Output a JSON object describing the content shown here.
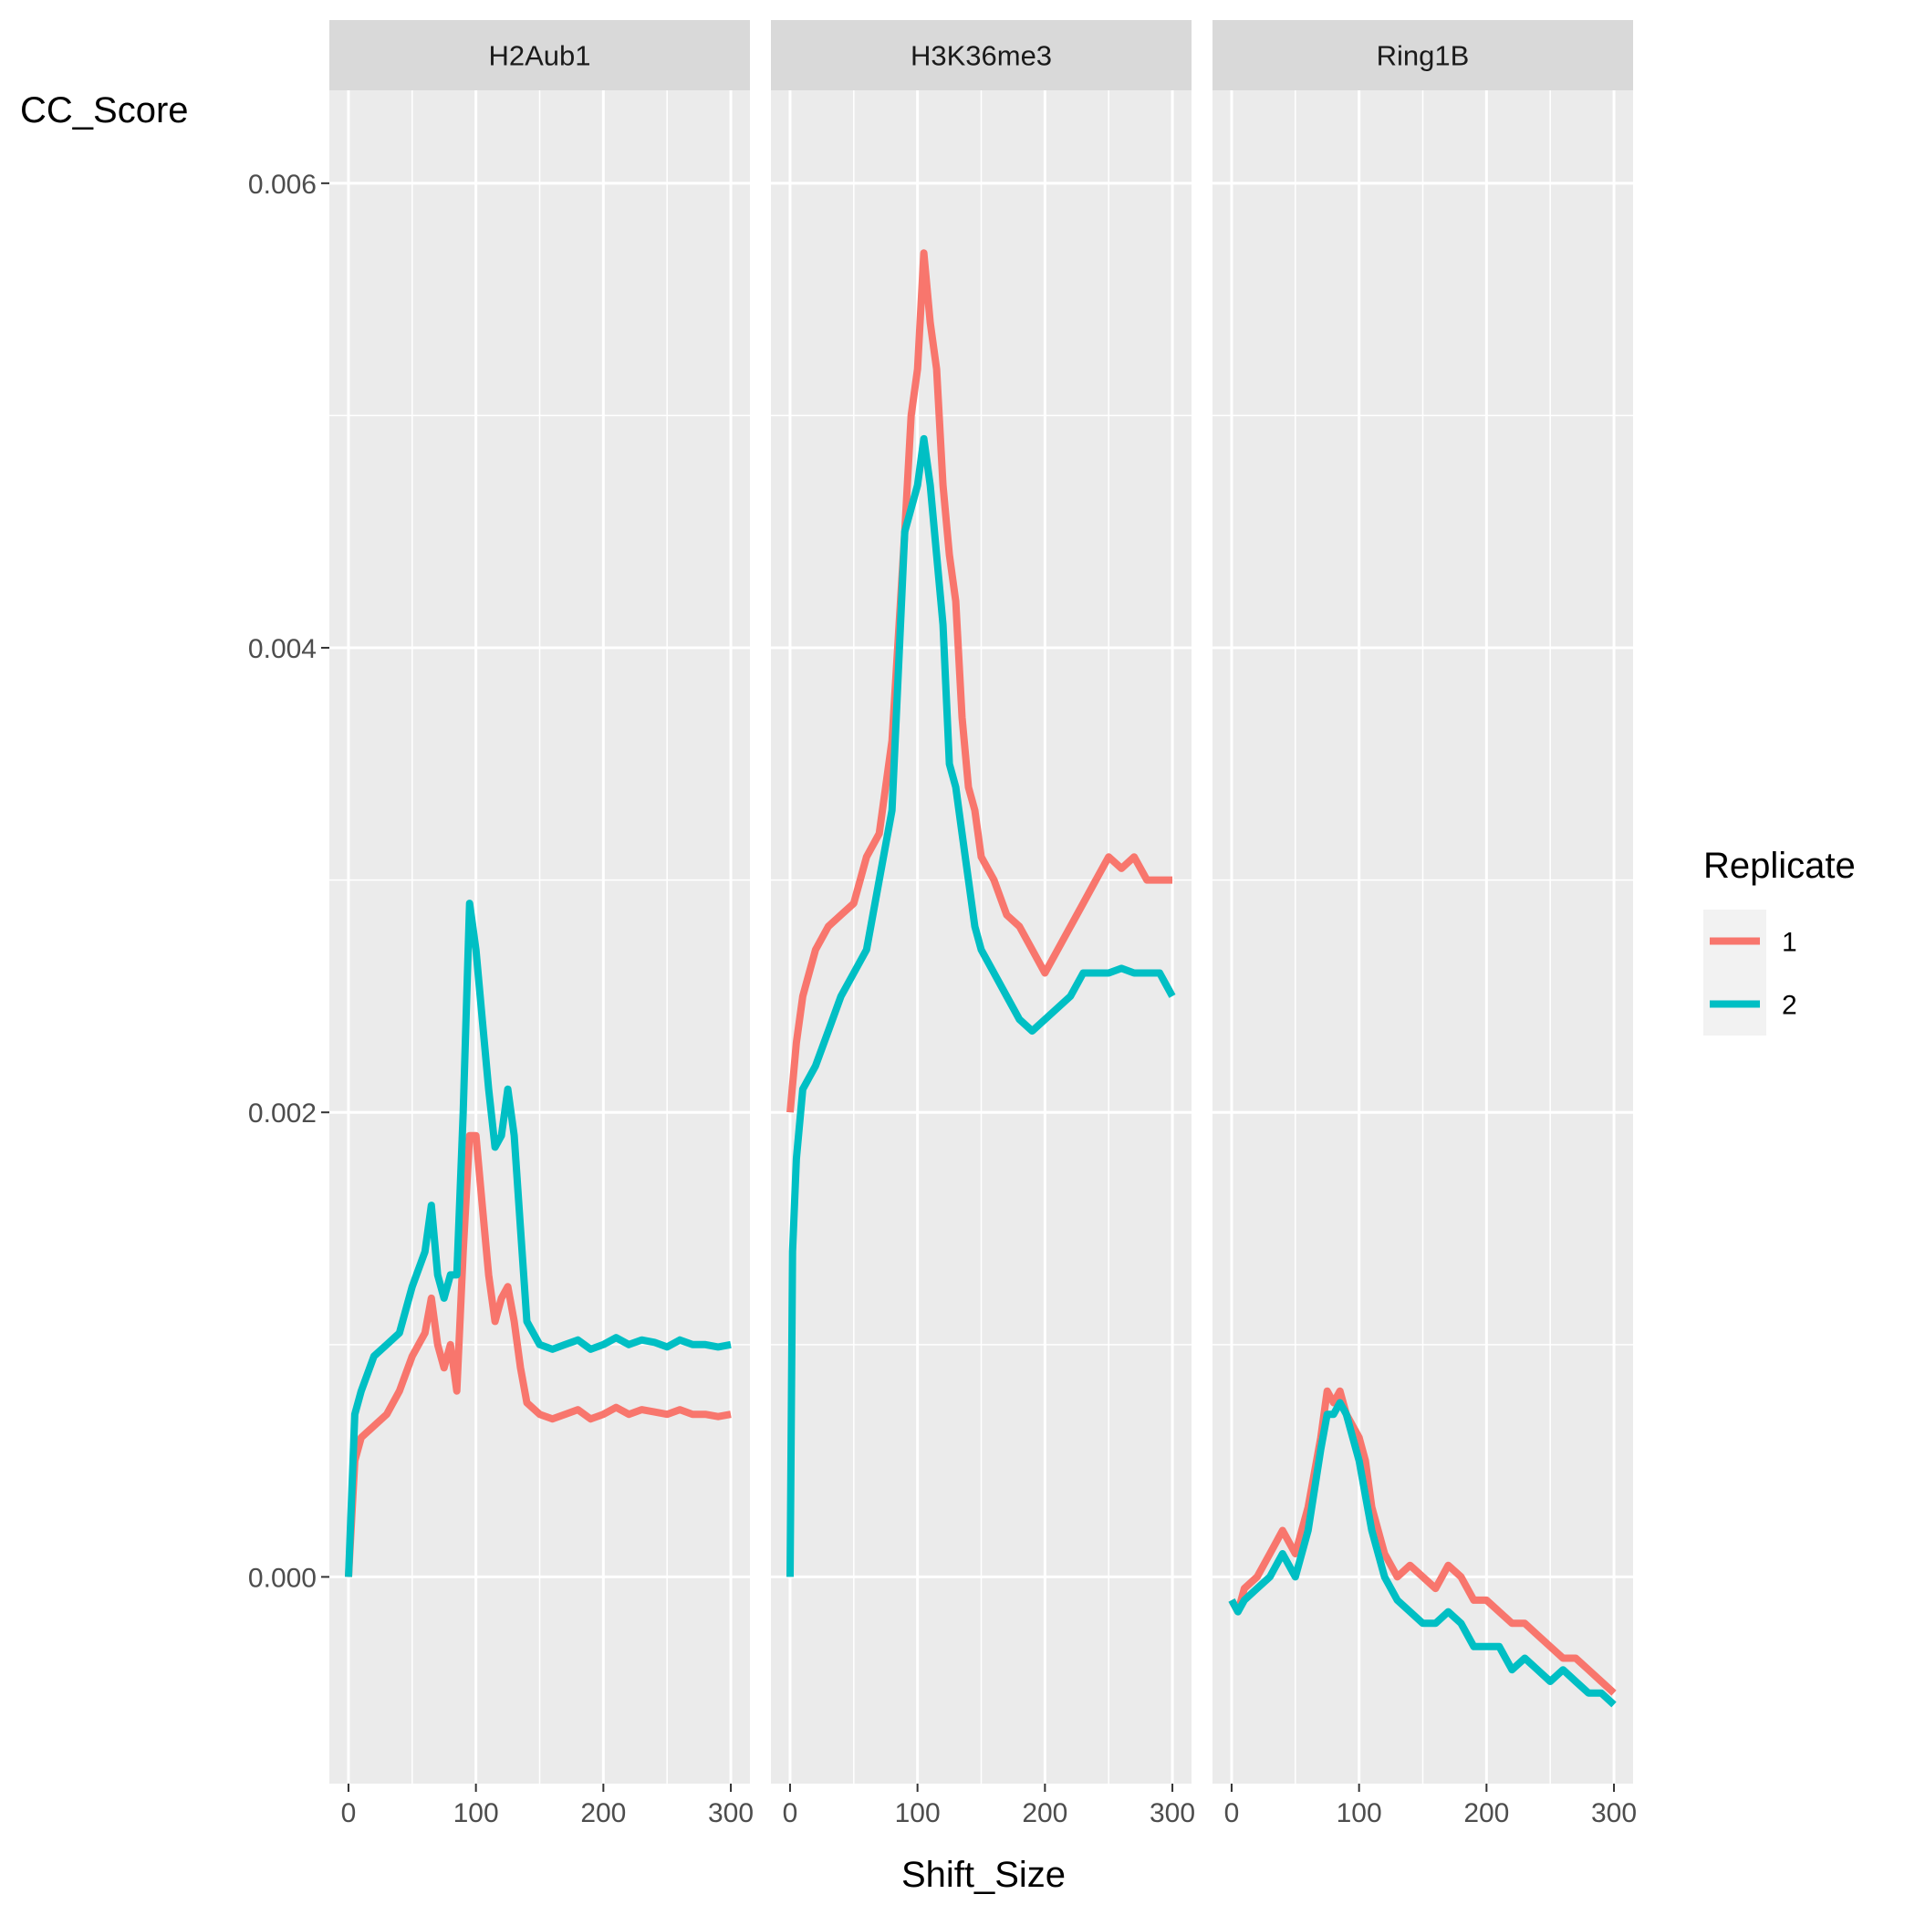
{
  "chart_data": {
    "type": "line",
    "facets": [
      "H2Aub1",
      "H3K36me3",
      "Ring1B"
    ],
    "xlabel": "Shift_Size",
    "ylabel": "CC_Score",
    "xlim": [
      -15,
      315
    ],
    "ylim": [
      -0.00089,
      0.0064
    ],
    "x_ticks": [
      0,
      100,
      200,
      300
    ],
    "x_tick_labels": [
      "0",
      "100",
      "200",
      "300"
    ],
    "y_ticks": [
      0.0,
      0.002,
      0.004,
      0.006
    ],
    "y_tick_labels": [
      "0.000",
      "0.002",
      "0.004",
      "0.006"
    ],
    "grid": true,
    "legend": {
      "title": "Replicate",
      "position": "right",
      "entries": [
        {
          "label": "1",
          "color": "#F8766D"
        },
        {
          "label": "2",
          "color": "#00BFC4"
        }
      ]
    },
    "series": [
      {
        "facet": "H2Aub1",
        "name": "1",
        "color": "#F8766D",
        "x": [
          0,
          5,
          10,
          20,
          30,
          40,
          50,
          60,
          65,
          70,
          75,
          80,
          85,
          90,
          95,
          100,
          105,
          110,
          115,
          120,
          125,
          130,
          135,
          140,
          150,
          160,
          170,
          180,
          190,
          200,
          210,
          220,
          230,
          240,
          250,
          260,
          270,
          280,
          290,
          300
        ],
        "y": [
          0.0,
          0.0005,
          0.0006,
          0.00065,
          0.0007,
          0.0008,
          0.00095,
          0.00105,
          0.0012,
          0.001,
          0.0009,
          0.001,
          0.0008,
          0.0014,
          0.0019,
          0.0019,
          0.0016,
          0.0013,
          0.0011,
          0.0012,
          0.00125,
          0.0011,
          0.0009,
          0.00075,
          0.0007,
          0.00068,
          0.0007,
          0.00072,
          0.00068,
          0.0007,
          0.00073,
          0.0007,
          0.00072,
          0.00071,
          0.0007,
          0.00072,
          0.0007,
          0.0007,
          0.00069,
          0.0007
        ]
      },
      {
        "facet": "H2Aub1",
        "name": "2",
        "color": "#00BFC4",
        "x": [
          0,
          5,
          10,
          20,
          30,
          40,
          50,
          60,
          65,
          70,
          75,
          80,
          85,
          90,
          95,
          100,
          105,
          110,
          115,
          120,
          125,
          130,
          135,
          140,
          150,
          160,
          170,
          180,
          190,
          200,
          210,
          220,
          230,
          240,
          250,
          260,
          270,
          280,
          290,
          300
        ],
        "y": [
          0.0,
          0.0007,
          0.0008,
          0.00095,
          0.001,
          0.00105,
          0.00125,
          0.0014,
          0.0016,
          0.0013,
          0.0012,
          0.0013,
          0.0013,
          0.002,
          0.0029,
          0.0027,
          0.0024,
          0.0021,
          0.00185,
          0.0019,
          0.0021,
          0.0019,
          0.0015,
          0.0011,
          0.001,
          0.00098,
          0.001,
          0.00102,
          0.00098,
          0.001,
          0.00103,
          0.001,
          0.00102,
          0.00101,
          0.00099,
          0.00102,
          0.001,
          0.001,
          0.00099,
          0.001
        ]
      },
      {
        "facet": "H3K36me3",
        "name": "1",
        "color": "#F8766D",
        "x": [
          0,
          5,
          10,
          20,
          30,
          40,
          50,
          60,
          70,
          80,
          90,
          95,
          100,
          105,
          110,
          115,
          120,
          125,
          130,
          135,
          140,
          145,
          150,
          160,
          170,
          180,
          190,
          200,
          210,
          220,
          230,
          240,
          250,
          260,
          270,
          280,
          290,
          300
        ],
        "y": [
          0.002,
          0.0023,
          0.0025,
          0.0027,
          0.0028,
          0.00285,
          0.0029,
          0.0031,
          0.0032,
          0.0036,
          0.0045,
          0.005,
          0.0052,
          0.0057,
          0.0054,
          0.0052,
          0.0047,
          0.0044,
          0.0042,
          0.0037,
          0.0034,
          0.0033,
          0.0031,
          0.003,
          0.00285,
          0.0028,
          0.0027,
          0.0026,
          0.0027,
          0.0028,
          0.0029,
          0.003,
          0.0031,
          0.00305,
          0.0031,
          0.003,
          0.003,
          0.003
        ]
      },
      {
        "facet": "H3K36me3",
        "name": "2",
        "color": "#00BFC4",
        "x": [
          0,
          2,
          5,
          10,
          20,
          30,
          40,
          50,
          60,
          70,
          80,
          90,
          95,
          100,
          105,
          110,
          115,
          120,
          125,
          130,
          135,
          140,
          145,
          150,
          160,
          170,
          180,
          190,
          200,
          210,
          220,
          230,
          240,
          250,
          260,
          270,
          280,
          290,
          300
        ],
        "y": [
          0.0,
          0.0014,
          0.0018,
          0.0021,
          0.0022,
          0.00235,
          0.0025,
          0.0026,
          0.0027,
          0.003,
          0.0033,
          0.0045,
          0.0046,
          0.0047,
          0.0049,
          0.0047,
          0.0044,
          0.0041,
          0.0035,
          0.0034,
          0.0032,
          0.003,
          0.0028,
          0.0027,
          0.0026,
          0.0025,
          0.0024,
          0.00235,
          0.0024,
          0.00245,
          0.0025,
          0.0026,
          0.0026,
          0.0026,
          0.00262,
          0.0026,
          0.0026,
          0.0026,
          0.0025
        ]
      },
      {
        "facet": "Ring1B",
        "name": "1",
        "color": "#F8766D",
        "x": [
          0,
          5,
          10,
          20,
          30,
          40,
          50,
          60,
          70,
          75,
          80,
          85,
          90,
          95,
          100,
          105,
          110,
          120,
          130,
          140,
          150,
          160,
          170,
          180,
          190,
          200,
          210,
          220,
          230,
          240,
          250,
          260,
          270,
          280,
          290,
          300
        ],
        "y": [
          -0.0001,
          -0.00015,
          -5e-05,
          0.0,
          0.0001,
          0.0002,
          0.0001,
          0.0003,
          0.0006,
          0.0008,
          0.00075,
          0.0008,
          0.0007,
          0.00065,
          0.0006,
          0.0005,
          0.0003,
          0.0001,
          0.0,
          5e-05,
          0.0,
          -5e-05,
          5e-05,
          0.0,
          -0.0001,
          -0.0001,
          -0.00015,
          -0.0002,
          -0.0002,
          -0.00025,
          -0.0003,
          -0.00035,
          -0.00035,
          -0.0004,
          -0.00045,
          -0.0005
        ]
      },
      {
        "facet": "Ring1B",
        "name": "2",
        "color": "#00BFC4",
        "x": [
          0,
          5,
          10,
          20,
          30,
          40,
          50,
          60,
          70,
          75,
          80,
          85,
          90,
          95,
          100,
          105,
          110,
          120,
          130,
          140,
          150,
          160,
          170,
          180,
          190,
          200,
          210,
          220,
          230,
          240,
          250,
          260,
          270,
          280,
          290,
          300
        ],
        "y": [
          -0.0001,
          -0.00015,
          -0.0001,
          -5e-05,
          0.0,
          0.0001,
          0.0,
          0.0002,
          0.00055,
          0.0007,
          0.0007,
          0.00075,
          0.0007,
          0.0006,
          0.0005,
          0.00035,
          0.0002,
          0.0,
          -0.0001,
          -0.00015,
          -0.0002,
          -0.0002,
          -0.00015,
          -0.0002,
          -0.0003,
          -0.0003,
          -0.0003,
          -0.0004,
          -0.00035,
          -0.0004,
          -0.00045,
          -0.0004,
          -0.00045,
          -0.0005,
          -0.0005,
          -0.00055
        ]
      }
    ]
  }
}
